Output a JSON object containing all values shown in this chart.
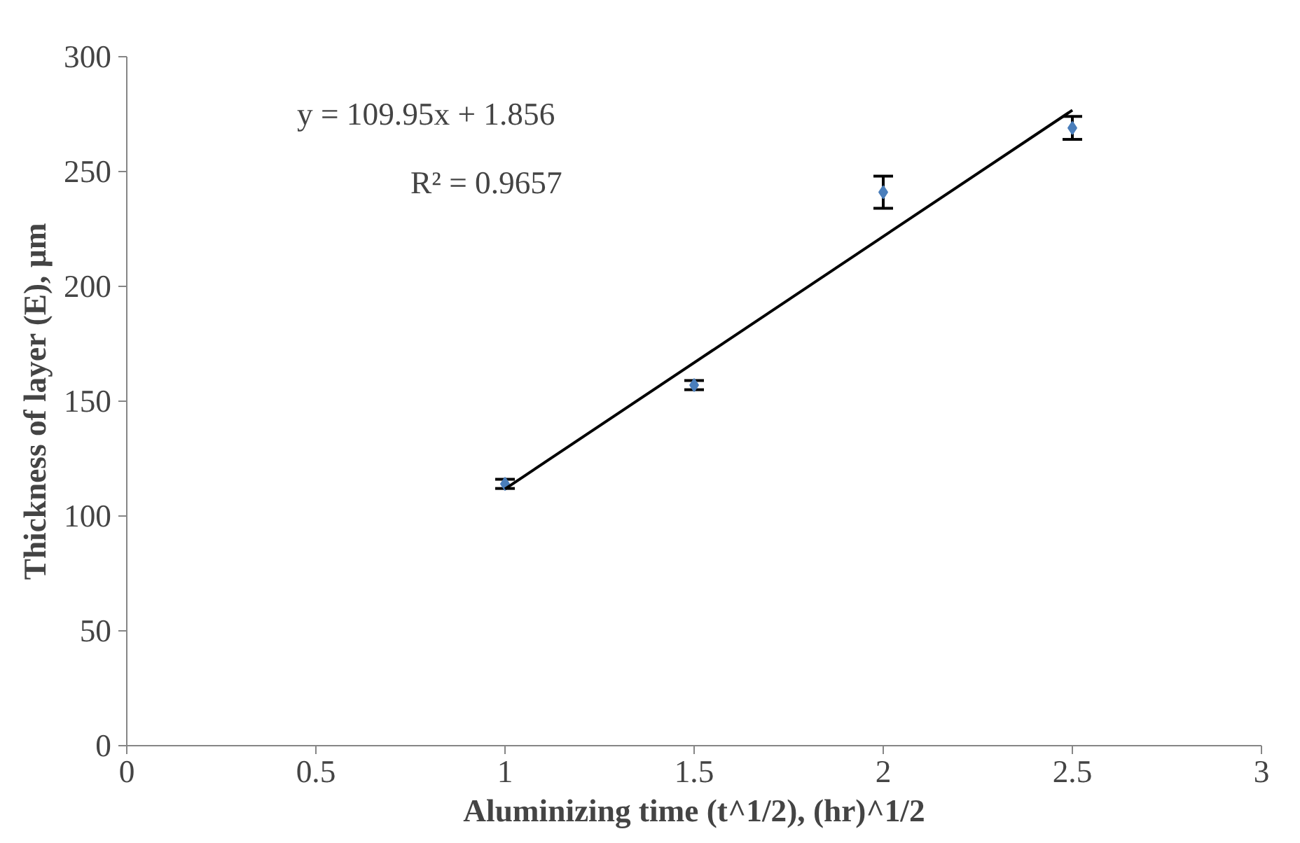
{
  "chart_data": {
    "type": "scatter",
    "xlabel": "Aluminizing time (t^1/2), (hr)^1/2",
    "ylabel": "Thickness of layer (E), µm",
    "x": [
      1,
      1.5,
      2,
      2.5
    ],
    "series": [
      {
        "color": "#4a7ebb",
        "values": [
          114,
          157,
          241,
          269
        ],
        "errors": [
          2,
          2,
          7,
          5
        ],
        "marker": "diamond"
      },
      {
        "type": "line",
        "color": "#000000",
        "x": [
          1,
          2.5
        ],
        "values": [
          111.8,
          276.7
        ],
        "line_style": "solid"
      }
    ],
    "annotations": [
      "y = 109.95x + 1.856",
      "R² = 0.9657"
    ],
    "xlim": [
      0,
      3
    ],
    "xticks": [
      0,
      0.5,
      1,
      1.5,
      2,
      2.5,
      3
    ],
    "ylim": [
      0,
      300
    ],
    "yticks": [
      0,
      50,
      100,
      150,
      200,
      250,
      300
    ],
    "grid": false
  }
}
